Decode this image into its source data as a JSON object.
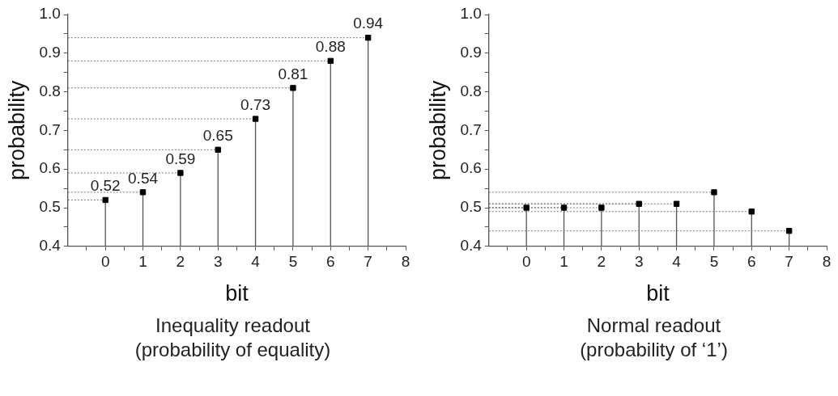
{
  "chart_data": [
    {
      "type": "lollipop",
      "x": [
        0,
        1,
        2,
        3,
        4,
        5,
        6,
        7
      ],
      "values": [
        0.52,
        0.54,
        0.59,
        0.65,
        0.73,
        0.81,
        0.88,
        0.94
      ],
      "color": "#000000",
      "marker": "square",
      "value_labels": [
        "0.52",
        "0.54",
        "0.59",
        "0.65",
        "0.73",
        "0.81",
        "0.88",
        "0.94"
      ],
      "series": [
        {
          "type": "line",
          "x": [
            -1,
            0
          ],
          "values": [
            0.52,
            0.52
          ],
          "color": "#777777",
          "line_style": "dotted",
          "marker": "none"
        },
        {
          "type": "line",
          "x": [
            -1,
            1
          ],
          "values": [
            0.54,
            0.54
          ],
          "color": "#777777",
          "line_style": "dotted",
          "marker": "none"
        },
        {
          "type": "line",
          "x": [
            -1,
            2
          ],
          "values": [
            0.59,
            0.59
          ],
          "color": "#777777",
          "line_style": "dotted",
          "marker": "none"
        },
        {
          "type": "line",
          "x": [
            -1,
            3
          ],
          "values": [
            0.65,
            0.65
          ],
          "color": "#777777",
          "line_style": "dotted",
          "marker": "none"
        },
        {
          "type": "line",
          "x": [
            -1,
            4
          ],
          "values": [
            0.73,
            0.73
          ],
          "color": "#777777",
          "line_style": "dotted",
          "marker": "none"
        },
        {
          "type": "line",
          "x": [
            -1,
            5
          ],
          "values": [
            0.81,
            0.81
          ],
          "color": "#777777",
          "line_style": "dotted",
          "marker": "none"
        },
        {
          "type": "line",
          "x": [
            -1,
            6
          ],
          "values": [
            0.88,
            0.88
          ],
          "color": "#777777",
          "line_style": "dotted",
          "marker": "none"
        },
        {
          "type": "line",
          "x": [
            -1,
            7
          ],
          "values": [
            0.94,
            0.94
          ],
          "color": "#777777",
          "line_style": "dotted",
          "marker": "none"
        }
      ],
      "xlabel": "bit",
      "ylabel": "probability",
      "xlim": [
        -1,
        8
      ],
      "ylim": [
        0.4,
        1
      ],
      "xticks": [
        {
          "value": -0.5,
          "label": null
        },
        0,
        {
          "value": 0.5,
          "label": null
        },
        1,
        {
          "value": 1.5,
          "label": null
        },
        2,
        {
          "value": 2.5,
          "label": null
        },
        3,
        {
          "value": 3.5,
          "label": null
        },
        4,
        {
          "value": 4.5,
          "label": null
        },
        5,
        {
          "value": 5.5,
          "label": null
        },
        6,
        {
          "value": 6.5,
          "label": null
        },
        7,
        {
          "value": 7.5,
          "label": null
        },
        8
      ],
      "yticks": [
        0.4,
        {
          "value": 0.45,
          "label": null
        },
        0.5,
        {
          "value": 0.55,
          "label": null
        },
        0.6,
        {
          "value": 0.65,
          "label": null
        },
        0.7,
        {
          "value": 0.75,
          "label": null
        },
        0.8,
        {
          "value": 0.85,
          "label": null
        },
        0.9,
        {
          "value": 0.95,
          "label": null
        },
        {
          "value": 1,
          "label": "1.0"
        }
      ],
      "annotations": [
        "Inequality readout",
        "(probability of equality)"
      ]
    },
    {
      "type": "lollipop",
      "x": [
        0,
        1,
        2,
        3,
        4,
        5,
        6,
        7
      ],
      "values": [
        0.5,
        0.5,
        0.5,
        0.51,
        0.51,
        0.54,
        0.49,
        0.44
      ],
      "color": "#000000",
      "marker": "square",
      "series": [
        {
          "type": "line",
          "x": [
            -1,
            0
          ],
          "values": [
            0.5,
            0.5
          ],
          "color": "#777777",
          "line_style": "dotted",
          "marker": "none"
        },
        {
          "type": "line",
          "x": [
            -1,
            1
          ],
          "values": [
            0.5,
            0.5
          ],
          "color": "#777777",
          "line_style": "dotted",
          "marker": "none"
        },
        {
          "type": "line",
          "x": [
            -1,
            2
          ],
          "values": [
            0.5,
            0.5
          ],
          "color": "#777777",
          "line_style": "dotted",
          "marker": "none"
        },
        {
          "type": "line",
          "x": [
            -1,
            3
          ],
          "values": [
            0.51,
            0.51
          ],
          "color": "#777777",
          "line_style": "dotted",
          "marker": "none"
        },
        {
          "type": "line",
          "x": [
            -1,
            4
          ],
          "values": [
            0.51,
            0.51
          ],
          "color": "#777777",
          "line_style": "dotted",
          "marker": "none"
        },
        {
          "type": "line",
          "x": [
            -1,
            5
          ],
          "values": [
            0.54,
            0.54
          ],
          "color": "#777777",
          "line_style": "dotted",
          "marker": "none"
        },
        {
          "type": "line",
          "x": [
            -1,
            6
          ],
          "values": [
            0.49,
            0.49
          ],
          "color": "#777777",
          "line_style": "dotted",
          "marker": "none"
        },
        {
          "type": "line",
          "x": [
            -1,
            7
          ],
          "values": [
            0.44,
            0.44
          ],
          "color": "#777777",
          "line_style": "dotted",
          "marker": "none"
        }
      ],
      "xlabel": "bit",
      "ylabel": "probability",
      "xlim": [
        -1,
        8
      ],
      "ylim": [
        0.4,
        1
      ],
      "xticks": [
        {
          "value": -0.5,
          "label": null
        },
        0,
        {
          "value": 0.5,
          "label": null
        },
        1,
        {
          "value": 1.5,
          "label": null
        },
        2,
        {
          "value": 2.5,
          "label": null
        },
        3,
        {
          "value": 3.5,
          "label": null
        },
        4,
        {
          "value": 4.5,
          "label": null
        },
        5,
        {
          "value": 5.5,
          "label": null
        },
        6,
        {
          "value": 6.5,
          "label": null
        },
        7,
        {
          "value": 7.5,
          "label": null
        },
        8
      ],
      "yticks": [
        0.4,
        {
          "value": 0.45,
          "label": null
        },
        0.5,
        {
          "value": 0.55,
          "label": null
        },
        0.6,
        {
          "value": 0.65,
          "label": null
        },
        0.7,
        {
          "value": 0.75,
          "label": null
        },
        0.8,
        {
          "value": 0.85,
          "label": null
        },
        0.9,
        {
          "value": 0.95,
          "label": null
        },
        {
          "value": 1,
          "label": "1.0"
        }
      ],
      "annotations": [
        "Normal readout",
        "(probability of ‘1’)"
      ]
    }
  ]
}
